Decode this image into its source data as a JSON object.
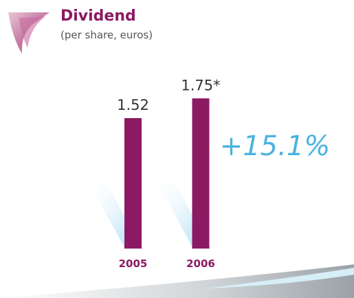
{
  "chart_data": {
    "type": "bar",
    "title": "Dividend",
    "subtitle": "(per share, euros)",
    "categories": [
      "2005",
      "2006"
    ],
    "values": [
      1.52,
      1.75
    ],
    "value_labels": [
      "1.52",
      "1.75*"
    ],
    "color": "#8b1a62",
    "annotation": "+15.1%"
  }
}
